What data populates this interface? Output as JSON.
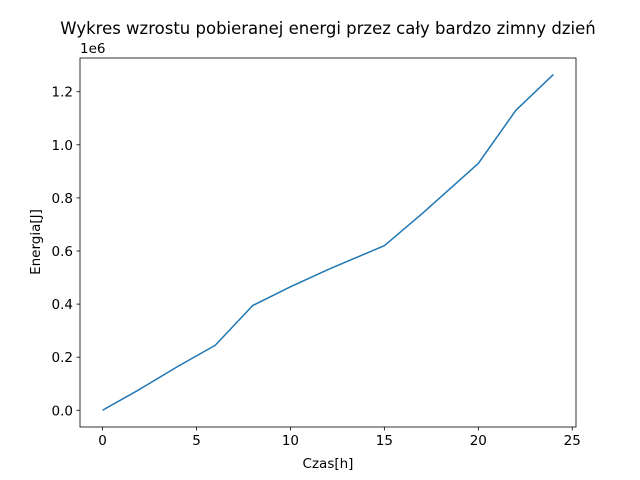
{
  "chart_data": {
    "type": "line",
    "title": "Wykres wzrostu pobieranej energi przez cały bardzo zimny dzień",
    "xlabel": "Czas[h]",
    "ylabel": "Energia[J]",
    "y_offset_label": "1e6",
    "x_ticks": [
      0,
      5,
      10,
      15,
      20,
      25
    ],
    "x_tick_labels": [
      "0",
      "5",
      "10",
      "15",
      "20",
      "25"
    ],
    "y_ticks": [
      0,
      0.2,
      0.4,
      0.6,
      0.8,
      1.0,
      1.2
    ],
    "y_tick_labels": [
      "0.0",
      "0.2",
      "0.4",
      "0.6",
      "0.8",
      "1.0",
      "1.2"
    ],
    "xlim": [
      -1.2,
      25.2
    ],
    "ylim": [
      -0.063,
      1.327
    ],
    "grid": false,
    "series": [
      {
        "color": "#1f77b4",
        "x": [
          0,
          2,
          4,
          6,
          8,
          10,
          12,
          13,
          15,
          17,
          20,
          22,
          24
        ],
        "y": [
          0,
          0.08,
          0.165,
          0.245,
          0.395,
          0.465,
          0.53,
          0.56,
          0.62,
          0.74,
          0.93,
          1.13,
          1.265
        ]
      }
    ]
  }
}
